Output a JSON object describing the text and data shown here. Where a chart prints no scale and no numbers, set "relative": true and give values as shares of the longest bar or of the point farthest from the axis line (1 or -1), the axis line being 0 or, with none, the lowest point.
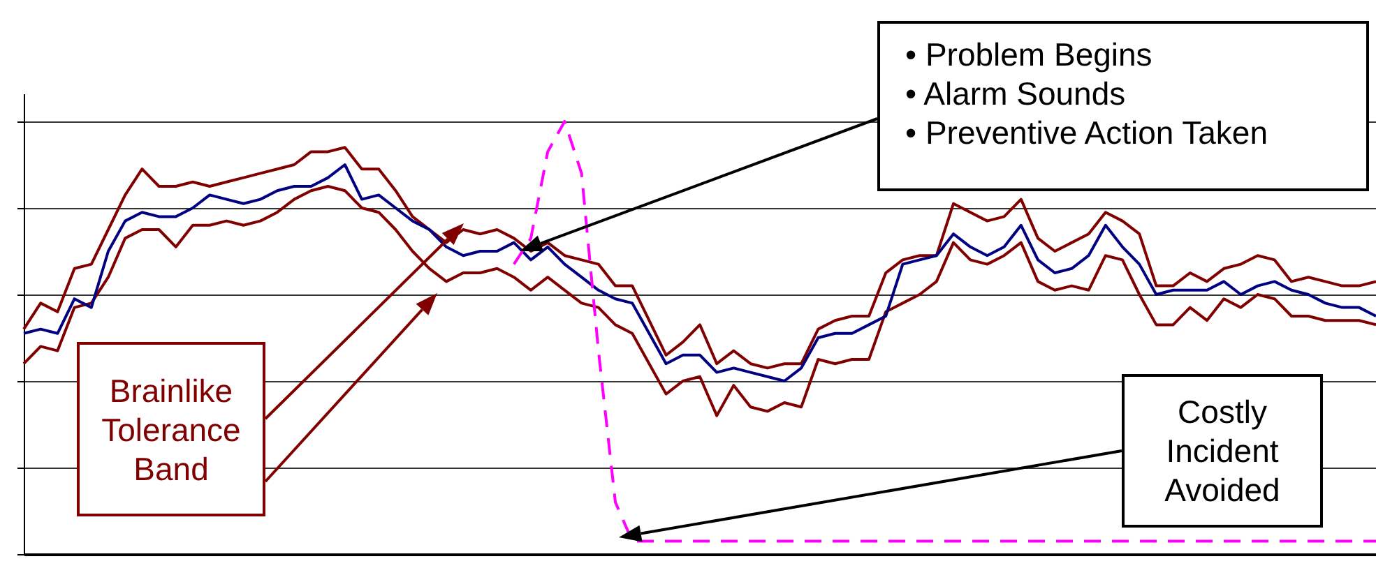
{
  "chart_data": {
    "type": "line",
    "relative": true,
    "grid": "y",
    "categories": [
      null,
      null,
      null,
      null,
      null,
      null,
      null,
      null,
      null,
      null,
      null,
      null,
      null,
      null,
      null,
      null,
      null,
      null,
      null,
      null,
      null,
      null,
      null,
      null,
      null,
      null,
      null,
      null,
      null,
      null,
      null,
      null,
      null,
      null,
      null,
      null,
      null,
      null,
      null,
      null,
      null,
      null,
      null,
      null,
      null,
      null,
      null,
      null,
      null,
      null,
      null,
      null,
      null,
      null,
      null,
      null,
      null,
      null,
      null,
      null,
      null,
      null,
      null,
      null,
      null,
      null,
      null,
      null,
      null,
      null,
      null,
      null,
      null,
      null,
      null,
      null,
      null,
      null,
      null,
      null,
      null
    ],
    "series": [
      {
        "color": "#800000",
        "values": [
          0.52,
          0.58,
          0.56,
          0.66,
          0.67,
          0.75,
          0.83,
          0.89,
          0.85,
          0.85,
          0.86,
          0.85,
          0.86,
          0.87,
          0.88,
          0.89,
          0.9,
          0.93,
          0.93,
          0.94,
          0.89,
          0.89,
          0.84,
          0.78,
          0.75,
          0.72,
          0.75,
          0.74,
          0.75,
          0.73,
          0.7,
          0.72,
          0.69,
          0.68,
          0.67,
          0.62,
          0.62,
          0.54,
          0.46,
          0.49,
          0.53,
          0.44,
          0.47,
          0.44,
          0.43,
          0.44,
          0.44,
          0.52,
          0.54,
          0.55,
          0.55,
          0.65,
          0.68,
          0.69,
          0.69,
          0.81,
          0.79,
          0.77,
          0.78,
          0.82,
          0.73,
          0.7,
          0.72,
          0.74,
          0.79,
          0.77,
          0.74,
          0.62,
          0.62,
          0.65,
          0.63,
          0.66,
          0.67,
          0.69,
          0.68,
          0.63,
          0.64,
          0.63,
          0.62,
          0.62,
          0.63
        ]
      },
      {
        "color": "#800000",
        "values": [
          0.44,
          0.48,
          0.47,
          0.57,
          0.58,
          0.64,
          0.73,
          0.75,
          0.75,
          0.71,
          0.76,
          0.76,
          0.77,
          0.76,
          0.77,
          0.79,
          0.82,
          0.84,
          0.85,
          0.84,
          0.8,
          0.79,
          0.75,
          0.7,
          0.66,
          0.63,
          0.65,
          0.65,
          0.66,
          0.64,
          0.61,
          0.64,
          0.61,
          0.58,
          0.57,
          0.53,
          0.51,
          0.44,
          0.37,
          0.4,
          0.41,
          0.32,
          0.39,
          0.34,
          0.33,
          0.35,
          0.34,
          0.45,
          0.44,
          0.45,
          0.45,
          0.56,
          0.58,
          0.6,
          0.63,
          0.72,
          0.68,
          0.67,
          0.69,
          0.72,
          0.63,
          0.61,
          0.62,
          0.61,
          0.69,
          0.68,
          0.6,
          0.53,
          0.53,
          0.57,
          0.54,
          0.59,
          0.57,
          0.6,
          0.59,
          0.55,
          0.55,
          0.54,
          0.54,
          0.54,
          0.53
        ]
      },
      {
        "color": "#000080",
        "values": [
          0.51,
          0.52,
          0.51,
          0.59,
          0.57,
          0.7,
          0.77,
          0.79,
          0.78,
          0.78,
          0.8,
          0.83,
          0.82,
          0.81,
          0.82,
          0.84,
          0.85,
          0.85,
          0.87,
          0.9,
          0.82,
          0.83,
          0.8,
          0.77,
          0.75,
          0.71,
          0.69,
          0.7,
          0.7,
          0.72,
          0.68,
          0.71,
          0.67,
          0.64,
          0.61,
          0.59,
          0.58,
          0.51,
          0.44,
          0.46,
          0.46,
          0.42,
          0.43,
          0.42,
          0.41,
          0.4,
          0.43,
          0.5,
          0.51,
          0.51,
          0.53,
          0.55,
          0.67,
          0.68,
          0.69,
          0.74,
          0.71,
          0.69,
          0.71,
          0.76,
          0.68,
          0.65,
          0.66,
          0.69,
          0.76,
          0.71,
          0.67,
          0.6,
          0.61,
          0.61,
          0.61,
          0.63,
          0.6,
          0.62,
          0.63,
          0.61,
          0.6,
          0.58,
          0.57,
          0.57,
          0.55
        ]
      },
      {
        "color": "#ff00ff",
        "line_style": "dashed",
        "values": [
          null,
          null,
          null,
          null,
          null,
          null,
          null,
          null,
          null,
          null,
          null,
          null,
          null,
          null,
          null,
          null,
          null,
          null,
          null,
          null,
          null,
          null,
          null,
          null,
          null,
          null,
          null,
          null,
          null,
          0.67,
          0.73,
          0.93,
          1.0,
          0.88,
          0.47,
          0.12,
          0.03,
          0.03,
          0.03,
          0.03,
          0.03,
          0.03,
          0.03,
          0.03,
          0.03,
          0.03,
          0.03,
          0.03,
          0.03,
          0.03,
          0.03,
          0.03,
          0.03,
          0.03,
          0.03,
          0.03,
          0.03,
          0.03,
          0.03,
          0.03,
          0.03,
          0.03,
          0.03,
          0.03,
          0.03,
          0.03,
          0.03,
          0.03,
          0.03,
          0.03,
          0.03,
          0.03,
          0.03,
          0.03,
          0.03,
          0.03,
          0.03,
          0.03,
          0.03,
          0.03,
          0.03
        ]
      }
    ],
    "annotations": [
      "• Problem Begins",
      "• Alarm Sounds",
      "• Preventive Action Taken",
      "Brainlike Tolerance Band",
      "Costly Incident Avoided"
    ]
  }
}
